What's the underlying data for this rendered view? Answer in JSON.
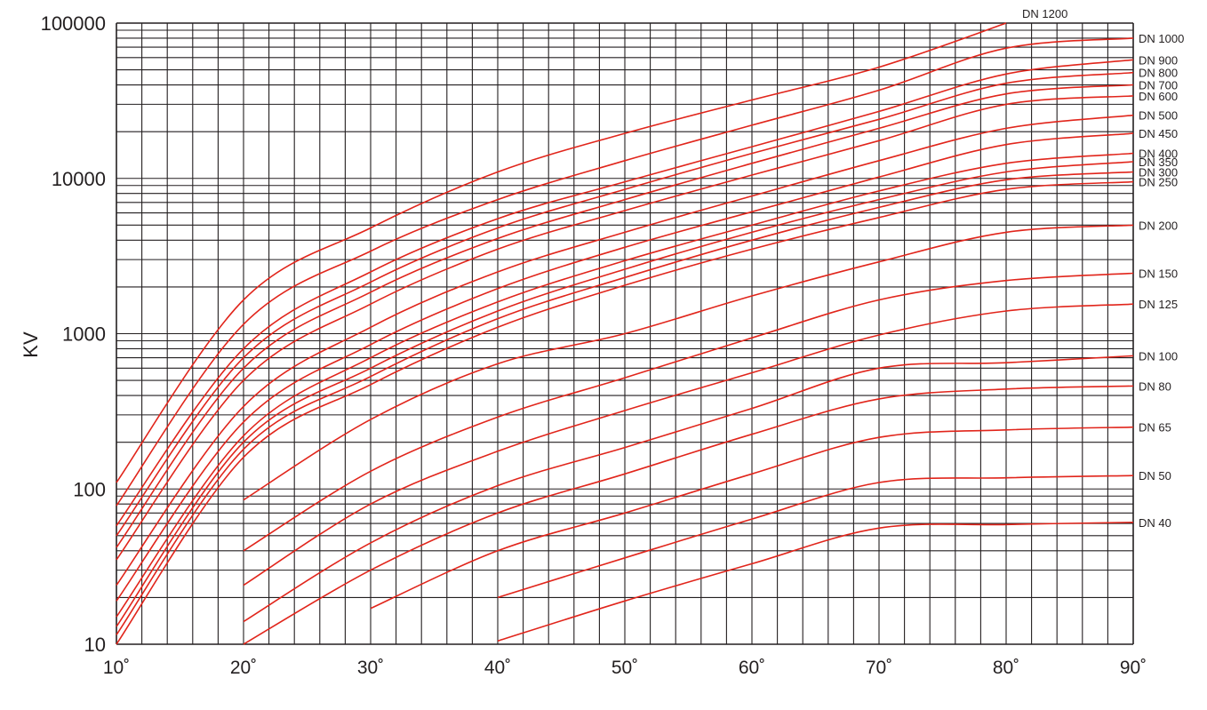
{
  "chart_data": {
    "type": "line",
    "title": "",
    "xlabel": "",
    "ylabel": "KV",
    "xlim": [
      10,
      90
    ],
    "ylim": [
      10,
      100000
    ],
    "y_scale": "log",
    "grid": true,
    "legend": "labels at right end of each curve",
    "line_color": "#e1251b",
    "grid_color": "#231f20",
    "x_ticks": [
      {
        "value": 10,
        "label": "10˚"
      },
      {
        "value": 20,
        "label": "20˚"
      },
      {
        "value": 30,
        "label": "30˚"
      },
      {
        "value": 40,
        "label": "40˚"
      },
      {
        "value": 50,
        "label": "50˚"
      },
      {
        "value": 60,
        "label": "60˚"
      },
      {
        "value": 70,
        "label": "70˚"
      },
      {
        "value": 80,
        "label": "80˚"
      },
      {
        "value": 90,
        "label": "90˚"
      }
    ],
    "y_ticks": [
      {
        "value": 10,
        "label": "10"
      },
      {
        "value": 100,
        "label": "100"
      },
      {
        "value": 1000,
        "label": "1000"
      },
      {
        "value": 10000,
        "label": "10000"
      },
      {
        "value": 100000,
        "label": "100000"
      }
    ],
    "x": [
      10,
      20,
      30,
      40,
      50,
      60,
      70,
      80,
      90
    ],
    "series": [
      {
        "name": "DN 1200",
        "values": [
          110,
          1650,
          4800,
          11000,
          19500,
          32000,
          52000,
          100000,
          null
        ]
      },
      {
        "name": "DN 1000",
        "values": [
          78,
          1150,
          3400,
          7300,
          13000,
          22000,
          37000,
          69000,
          80000
        ]
      },
      {
        "name": "DN 900",
        "values": [
          58,
          800,
          2500,
          5500,
          9500,
          16000,
          27000,
          47000,
          58000
        ]
      },
      {
        "name": "DN 800",
        "values": [
          50,
          700,
          2150,
          4800,
          8500,
          14500,
          24000,
          41000,
          48000
        ]
      },
      {
        "name": "DN 700",
        "values": [
          42,
          600,
          1850,
          4100,
          7300,
          12500,
          21000,
          35000,
          40000
        ]
      },
      {
        "name": "DN 600",
        "values": [
          35,
          500,
          1550,
          3500,
          6200,
          10500,
          17500,
          30000,
          34000
        ]
      },
      {
        "name": "DN 500",
        "values": [
          24,
          340,
          1100,
          2500,
          4500,
          7700,
          13000,
          21000,
          25500
        ]
      },
      {
        "name": "DN 450",
        "values": [
          19,
          270,
          850,
          1950,
          3600,
          6100,
          10200,
          16500,
          19500
        ]
      },
      {
        "name": "DN 400",
        "values": [
          15,
          220,
          700,
          1600,
          2950,
          5000,
          8300,
          12500,
          14500
        ]
      },
      {
        "name": "DN 350",
        "values": [
          13,
          200,
          600,
          1400,
          2600,
          4500,
          7300,
          11000,
          12800
        ]
      },
      {
        "name": "DN 300",
        "values": [
          11.5,
          180,
          530,
          1250,
          2300,
          4000,
          6500,
          9800,
          11000
        ]
      },
      {
        "name": "DN 250",
        "values": [
          10,
          160,
          470,
          1100,
          2050,
          3500,
          5600,
          8500,
          9500
        ]
      },
      {
        "name": "DN 200",
        "values": [
          null,
          85,
          280,
          640,
          1000,
          1750,
          2900,
          4500,
          5000
        ]
      },
      {
        "name": "DN 150",
        "values": [
          null,
          40,
          130,
          290,
          520,
          940,
          1650,
          2200,
          2450
        ]
      },
      {
        "name": "DN 125",
        "values": [
          null,
          24,
          80,
          175,
          320,
          560,
          980,
          1400,
          1550
        ]
      },
      {
        "name": "DN 100",
        "values": [
          null,
          14,
          45,
          105,
          185,
          330,
          600,
          650,
          720
        ]
      },
      {
        "name": "DN 80",
        "values": [
          null,
          10,
          30,
          70,
          125,
          225,
          380,
          440,
          460
        ]
      },
      {
        "name": "DN 65",
        "values": [
          null,
          null,
          17,
          40,
          70,
          125,
          215,
          240,
          250
        ]
      },
      {
        "name": "DN 50",
        "values": [
          null,
          null,
          null,
          20,
          36,
          64,
          110,
          118,
          122
        ]
      },
      {
        "name": "DN 40",
        "values": [
          null,
          null,
          null,
          10.5,
          19,
          33,
          56,
          59,
          61
        ]
      }
    ]
  }
}
